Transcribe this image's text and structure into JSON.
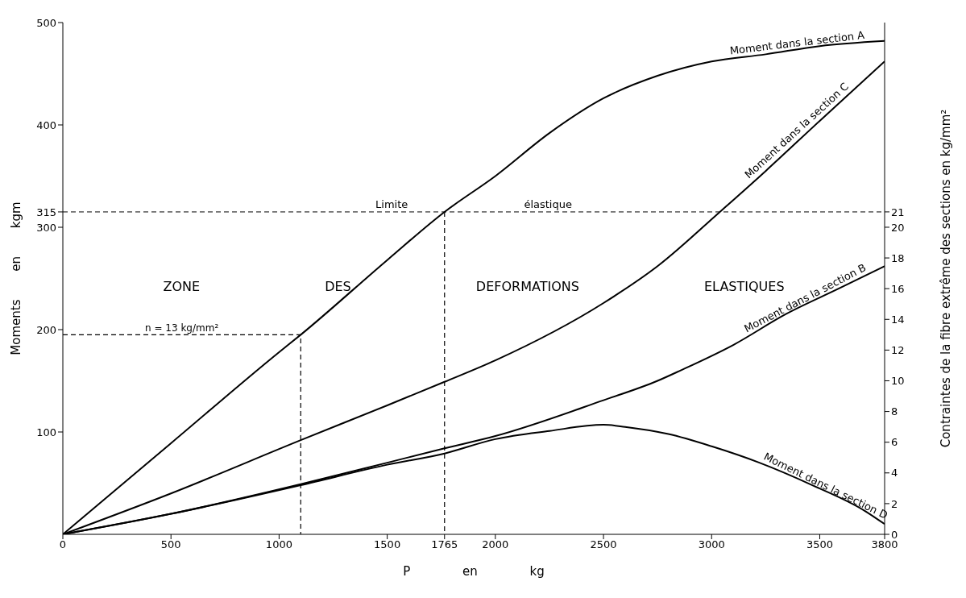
{
  "chart_data": {
    "type": "line",
    "xlabel": "P en kg",
    "ylabel": "Moments en kgm",
    "y2label": "Contraintes de la fibre extrême des sections en kg/mm²",
    "xlim": [
      0,
      3800
    ],
    "xticks": [
      0,
      500,
      1000,
      1500,
      1765,
      2000,
      2500,
      3000,
      3500,
      3800
    ],
    "ylim": [
      0,
      500
    ],
    "yticks": [
      100,
      200,
      300,
      315,
      400,
      500
    ],
    "y2lim": [
      0,
      33.33
    ],
    "y2ticks": [
      0,
      2,
      4,
      6,
      8,
      10,
      12,
      14,
      16,
      18,
      20,
      21
    ],
    "marker": "none",
    "line_style": "solid",
    "series": [
      {
        "name": "Moment dans la section A",
        "color": "#000000",
        "x": [
          0,
          500,
          1000,
          1100,
          1500,
          1765,
          2000,
          2250,
          2500,
          2750,
          3000,
          3250,
          3500,
          3800
        ],
        "values": [
          0,
          89,
          178,
          195,
          268,
          315,
          350,
          392,
          426,
          448,
          462,
          469,
          477,
          482
        ]
      },
      {
        "name": "Moment dans la section C",
        "color": "#000000",
        "x": [
          0,
          500,
          1100,
          1500,
          1765,
          2000,
          2500,
          2750,
          3038,
          3250,
          3500,
          3800
        ],
        "values": [
          0,
          40,
          92,
          126,
          149,
          170,
          226,
          262,
          315,
          355,
          404,
          462
        ]
      },
      {
        "name": "Moment dans la section B",
        "color": "#000000",
        "x": [
          0,
          500,
          1100,
          1500,
          1765,
          2000,
          2500,
          2750,
          2855,
          3100,
          3342,
          3587,
          3800
        ],
        "values": [
          0,
          20,
          49,
          70,
          84,
          96,
          131,
          150,
          160,
          185,
          215,
          240,
          262
        ]
      },
      {
        "name": "Moment dans la section D",
        "color": "#000000",
        "x": [
          0,
          500,
          1100,
          1500,
          1765,
          2000,
          2250,
          2500,
          2600,
          2800,
          3000,
          3221,
          3466,
          3708,
          3800
        ],
        "values": [
          0,
          20,
          48,
          68,
          79,
          93,
          101,
          107,
          105,
          98,
          86,
          70,
          48,
          23,
          10
        ]
      },
      {
        "color": "#000000",
        "line_style": "dashed",
        "x": [
          0,
          1100,
          1100
        ],
        "values": [
          195,
          195,
          0
        ]
      },
      {
        "color": "#000000",
        "line_style": "dashed",
        "x": [
          1765,
          1765
        ],
        "values": [
          315,
          0
        ]
      }
    ],
    "ref_lines": [
      {
        "axis": "y",
        "value": 315,
        "label": "Limite élastique",
        "color": "#000000",
        "line_style": "dashed"
      }
    ],
    "annotations": [
      "ZONE DES DEFORMATIONS ELASTIQUES",
      {
        "text": "n = 13 kg/mm²",
        "x": 550,
        "y": 195
      }
    ]
  }
}
